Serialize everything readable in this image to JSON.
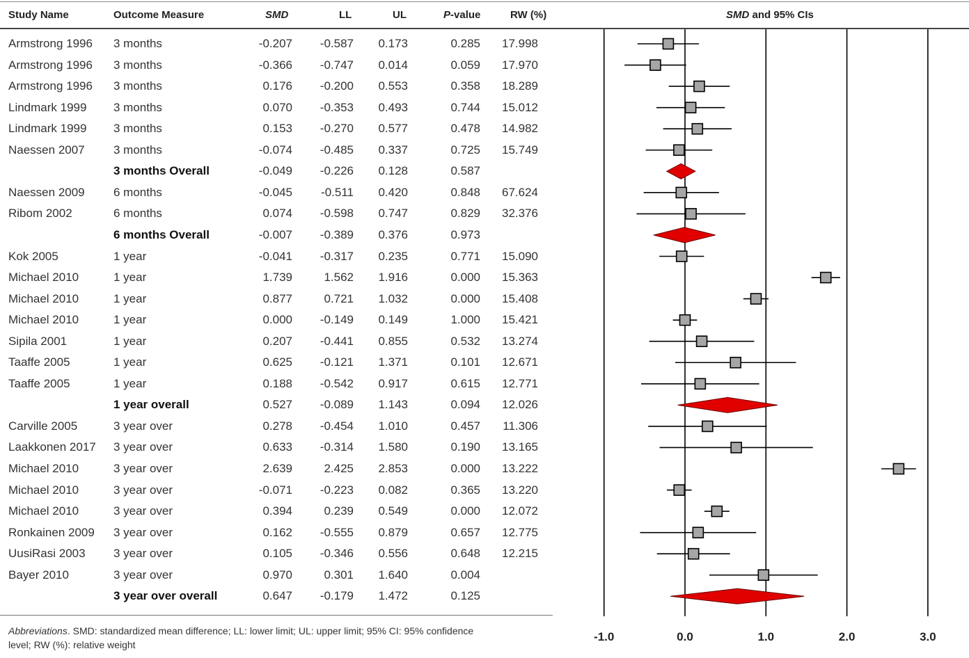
{
  "headers": {
    "study": "Study Name",
    "outcome": "Outcome Measure",
    "smd": "SMD",
    "ll": "LL",
    "ul": "UL",
    "p_prefix": "P",
    "p_suffix": "-value",
    "rw": "RW (%)",
    "plot_smd": "SMD",
    "plot_rest": " and 95% CIs"
  },
  "rows": [
    {
      "study": "Armstrong 1996",
      "outcome": "3 months",
      "smd": "-0.207",
      "ll": "-0.587",
      "ul": "0.173",
      "p": "0.285",
      "rw": "17.998"
    },
    {
      "study": "Armstrong 1996",
      "outcome": "3 months",
      "smd": "-0.366",
      "ll": "-0.747",
      "ul": "0.014",
      "p": "0.059",
      "rw": "17.970"
    },
    {
      "study": "Armstrong 1996",
      "outcome": "3 months",
      "smd": "0.176",
      "ll": "-0.200",
      "ul": "0.553",
      "p": "0.358",
      "rw": "18.289"
    },
    {
      "study": "Lindmark 1999",
      "outcome": "3 months",
      "smd": "0.070",
      "ll": "-0.353",
      "ul": "0.493",
      "p": "0.744",
      "rw": "15.012"
    },
    {
      "study": "Lindmark 1999",
      "outcome": "3 months",
      "smd": "0.153",
      "ll": "-0.270",
      "ul": "0.577",
      "p": "0.478",
      "rw": "14.982"
    },
    {
      "study": "Naessen 2007",
      "outcome": "3 months",
      "smd": "-0.074",
      "ll": "-0.485",
      "ul": "0.337",
      "p": "0.725",
      "rw": "15.749"
    },
    {
      "study": "",
      "outcome": "3 months Overall",
      "smd": "-0.049",
      "ll": "-0.226",
      "ul": "0.128",
      "p": "0.587",
      "rw": "",
      "overall": true
    },
    {
      "study": "Naessen 2009",
      "outcome": "6 months",
      "smd": "-0.045",
      "ll": "-0.511",
      "ul": "0.420",
      "p": "0.848",
      "rw": "67.624"
    },
    {
      "study": "Ribom 2002",
      "outcome": "6 months",
      "smd": "0.074",
      "ll": "-0.598",
      "ul": "0.747",
      "p": "0.829",
      "rw": "32.376"
    },
    {
      "study": "",
      "outcome": "6 months Overall",
      "smd": "-0.007",
      "ll": "-0.389",
      "ul": "0.376",
      "p": "0.973",
      "rw": "",
      "overall": true
    },
    {
      "study": "Kok 2005",
      "outcome": "1 year",
      "smd": "-0.041",
      "ll": "-0.317",
      "ul": "0.235",
      "p": "0.771",
      "rw": "15.090"
    },
    {
      "study": "Michael 2010",
      "outcome": "1 year",
      "smd": "1.739",
      "ll": "1.562",
      "ul": "1.916",
      "p": "0.000",
      "rw": "15.363"
    },
    {
      "study": "Michael 2010",
      "outcome": "1 year",
      "smd": "0.877",
      "ll": "0.721",
      "ul": "1.032",
      "p": "0.000",
      "rw": "15.408"
    },
    {
      "study": "Michael 2010",
      "outcome": "1 year",
      "smd": "0.000",
      "ll": "-0.149",
      "ul": "0.149",
      "p": "1.000",
      "rw": "15.421"
    },
    {
      "study": "Sipila 2001",
      "outcome": "1 year",
      "smd": "0.207",
      "ll": "-0.441",
      "ul": "0.855",
      "p": "0.532",
      "rw": "13.274"
    },
    {
      "study": "Taaffe 2005",
      "outcome": "1 year",
      "smd": "0.625",
      "ll": "-0.121",
      "ul": "1.371",
      "p": "0.101",
      "rw": "12.671"
    },
    {
      "study": "Taaffe 2005",
      "outcome": "1 year",
      "smd": "0.188",
      "ll": "-0.542",
      "ul": "0.917",
      "p": "0.615",
      "rw": "12.771"
    },
    {
      "study": "",
      "outcome": "1 year overall",
      "smd": "0.527",
      "ll": "-0.089",
      "ul": "1.143",
      "p": "0.094",
      "rw": "12.026",
      "overall": true
    },
    {
      "study": "Carville 2005",
      "outcome": "3 year over",
      "smd": "0.278",
      "ll": "-0.454",
      "ul": "1.010",
      "p": "0.457",
      "rw": "11.306"
    },
    {
      "study": "Laakkonen 2017",
      "outcome": "3 year over",
      "smd": "0.633",
      "ll": "-0.314",
      "ul": "1.580",
      "p": "0.190",
      "rw": "13.165"
    },
    {
      "study": "Michael 2010",
      "outcome": "3 year over",
      "smd": "2.639",
      "ll": "2.425",
      "ul": "2.853",
      "p": "0.000",
      "rw": "13.222"
    },
    {
      "study": "Michael 2010",
      "outcome": "3 year over",
      "smd": "-0.071",
      "ll": "-0.223",
      "ul": "0.082",
      "p": "0.365",
      "rw": "13.220"
    },
    {
      "study": "Michael 2010",
      "outcome": "3 year over",
      "smd": "0.394",
      "ll": "0.239",
      "ul": "0.549",
      "p": "0.000",
      "rw": "12.072"
    },
    {
      "study": "Ronkainen 2009",
      "outcome": "3 year over",
      "smd": "0.162",
      "ll": "-0.555",
      "ul": "0.879",
      "p": "0.657",
      "rw": "12.775"
    },
    {
      "study": "UusiRasi 2003",
      "outcome": "3 year over",
      "smd": "0.105",
      "ll": "-0.346",
      "ul": "0.556",
      "p": "0.648",
      "rw": "12.215"
    },
    {
      "study": "Bayer 2010",
      "outcome": "3 year over",
      "smd": "0.970",
      "ll": "0.301",
      "ul": "1.640",
      "p": "0.004",
      "rw": ""
    },
    {
      "study": "",
      "outcome": "3 year over overall",
      "smd": "0.647",
      "ll": "-0.179",
      "ul": "1.472",
      "p": "0.125",
      "rw": "",
      "overall": true
    }
  ],
  "footnote": {
    "abbr_label": "Abbreviations",
    "text": ". SMD: standardized mean difference; LL: lower limit; UL: upper limit; 95% CI: 95% confidence level; RW (%): relative weight"
  },
  "chart_data": {
    "type": "forest",
    "title": "SMD and 95% CIs",
    "xlim": [
      -1.0,
      3.0
    ],
    "ticks": [
      "-1.0",
      "0.0",
      "1.0",
      "2.0",
      "3.0"
    ],
    "tick_values": [
      -1,
      0,
      1,
      2,
      3
    ],
    "reference_lines": [
      0,
      1,
      2,
      3
    ],
    "colors": {
      "study_marker": "#a6a6a6",
      "overall_marker": "#e00000",
      "line": "#000000"
    },
    "points": [
      {
        "smd": -0.207,
        "ll": -0.587,
        "ul": 0.173
      },
      {
        "smd": -0.366,
        "ll": -0.747,
        "ul": 0.014
      },
      {
        "smd": 0.176,
        "ll": -0.2,
        "ul": 0.553
      },
      {
        "smd": 0.07,
        "ll": -0.353,
        "ul": 0.493
      },
      {
        "smd": 0.153,
        "ll": -0.27,
        "ul": 0.577
      },
      {
        "smd": -0.074,
        "ll": -0.485,
        "ul": 0.337
      },
      {
        "smd": -0.049,
        "ll": -0.226,
        "ul": 0.128,
        "overall": true
      },
      {
        "smd": -0.045,
        "ll": -0.511,
        "ul": 0.42
      },
      {
        "smd": 0.074,
        "ll": -0.598,
        "ul": 0.747
      },
      {
        "smd": -0.007,
        "ll": -0.389,
        "ul": 0.376,
        "overall": true
      },
      {
        "smd": -0.041,
        "ll": -0.317,
        "ul": 0.235
      },
      {
        "smd": 1.739,
        "ll": 1.562,
        "ul": 1.916
      },
      {
        "smd": 0.877,
        "ll": 0.721,
        "ul": 1.032
      },
      {
        "smd": 0.0,
        "ll": -0.149,
        "ul": 0.149
      },
      {
        "smd": 0.207,
        "ll": -0.441,
        "ul": 0.855
      },
      {
        "smd": 0.625,
        "ll": -0.121,
        "ul": 1.371
      },
      {
        "smd": 0.188,
        "ll": -0.542,
        "ul": 0.917
      },
      {
        "smd": 0.527,
        "ll": -0.089,
        "ul": 1.143,
        "overall": true
      },
      {
        "smd": 0.278,
        "ll": -0.454,
        "ul": 1.01
      },
      {
        "smd": 0.633,
        "ll": -0.314,
        "ul": 1.58
      },
      {
        "smd": 2.639,
        "ll": 2.425,
        "ul": 2.853
      },
      {
        "smd": -0.071,
        "ll": -0.223,
        "ul": 0.082
      },
      {
        "smd": 0.394,
        "ll": 0.239,
        "ul": 0.549
      },
      {
        "smd": 0.162,
        "ll": -0.555,
        "ul": 0.879
      },
      {
        "smd": 0.105,
        "ll": -0.346,
        "ul": 0.556
      },
      {
        "smd": 0.97,
        "ll": 0.301,
        "ul": 1.64
      },
      {
        "smd": 0.647,
        "ll": -0.179,
        "ul": 1.472,
        "overall": true
      }
    ]
  }
}
